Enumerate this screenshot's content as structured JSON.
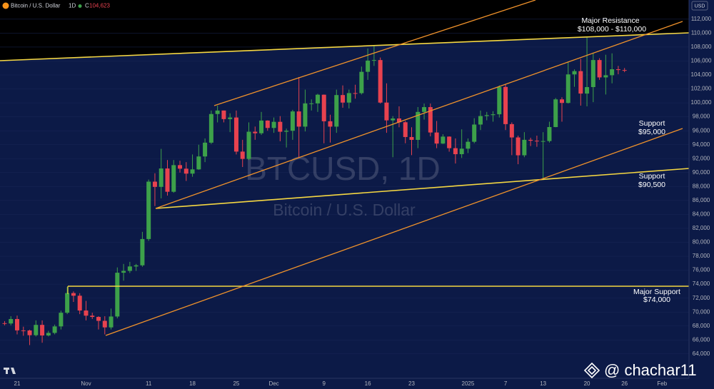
{
  "chart_data": {
    "type": "candlestick",
    "header": {
      "symbol": "Bitcoin / U.S. Dollar",
      "interval": "1D",
      "close_prefix": "C",
      "close": {
        "value": 104623,
        "label": "104,623"
      }
    },
    "watermark": {
      "symbol": "BTCUSD, 1D",
      "description": "Bitcoin / U.S. Dollar"
    },
    "currency": "USD",
    "credit": "@ chachar11",
    "annotations": [
      {
        "title": "Major Resistance",
        "level": "$108,000 - $110,000"
      },
      {
        "title": "Support",
        "level": "$95,000"
      },
      {
        "title": "Support",
        "level": "$90,500"
      },
      {
        "title": "Major Support",
        "level": "$74,000"
      }
    ],
    "up_color": "#3da14a",
    "down_color": "#e8424f",
    "ylim": [
      60500,
      114750
    ],
    "yticks": [
      {
        "value": 64000,
        "label": "64,000"
      },
      {
        "value": 66000,
        "label": "66,000"
      },
      {
        "value": 68000,
        "label": "68,000"
      },
      {
        "value": 70000,
        "label": "70,000"
      },
      {
        "value": 72000,
        "label": "72,000"
      },
      {
        "value": 74000,
        "label": "74,000"
      },
      {
        "value": 76000,
        "label": "76,000"
      },
      {
        "value": 78000,
        "label": "78,000"
      },
      {
        "value": 80000,
        "label": "80,000"
      },
      {
        "value": 82000,
        "label": "82,000"
      },
      {
        "value": 84000,
        "label": "84,000"
      },
      {
        "value": 86000,
        "label": "86,000"
      },
      {
        "value": 88000,
        "label": "88,000"
      },
      {
        "value": 90000,
        "label": "90,000"
      },
      {
        "value": 92000,
        "label": "92,000"
      },
      {
        "value": 94000,
        "label": "94,000"
      },
      {
        "value": 96000,
        "label": "96,000"
      },
      {
        "value": 98000,
        "label": "98,000"
      },
      {
        "value": 100000,
        "label": "100,000"
      },
      {
        "value": 102000,
        "label": "102,000"
      },
      {
        "value": 104000,
        "label": "104,000"
      },
      {
        "value": 106000,
        "label": "106,000"
      },
      {
        "value": 108000,
        "label": "108,000"
      },
      {
        "value": 110000,
        "label": "110,000"
      },
      {
        "value": 112000,
        "label": "112,000"
      }
    ],
    "xticks": [
      {
        "value": 2,
        "label": "21"
      },
      {
        "value": 13,
        "label": "Nov"
      },
      {
        "value": 23,
        "label": "11"
      },
      {
        "value": 30,
        "label": "18"
      },
      {
        "value": 37,
        "label": "25"
      },
      {
        "value": 43,
        "label": "Dec"
      },
      {
        "value": 51,
        "label": "9"
      },
      {
        "value": 58,
        "label": "16"
      },
      {
        "value": 65,
        "label": "23"
      },
      {
        "value": 74,
        "label": "2025"
      },
      {
        "value": 80,
        "label": "7"
      },
      {
        "value": 86,
        "label": "13"
      },
      {
        "value": 93,
        "label": "20"
      },
      {
        "value": 99,
        "label": "26"
      },
      {
        "value": 105,
        "label": "Feb"
      }
    ],
    "open": [
      68400,
      68360,
      69000,
      67370,
      67360,
      66680,
      68160,
      66640,
      67010,
      67940,
      69900,
      72720,
      72340,
      70220,
      69480,
      69300,
      68740,
      67800,
      69360,
      75640,
      75900,
      76540,
      76700,
      80470,
      88700,
      87950,
      90590,
      87250,
      91070,
      90560,
      89850,
      90460,
      92310,
      94290,
      98400,
      98900,
      97670,
      97900,
      93010,
      91960,
      95860,
      95640,
      97460,
      96400,
      97280,
      95860,
      96000,
      98770,
      96590,
      99920,
      99920,
      101170,
      97360,
      96590,
      101120,
      100040,
      101400,
      101390,
      104450,
      106060,
      106140,
      100040,
      97490,
      97760,
      97220,
      95100,
      94690,
      98700,
      99390,
      95750,
      94160,
      95160,
      93500,
      92640,
      93430,
      94420,
      96890,
      98110,
      98240,
      98360,
      102280,
      96950,
      95040,
      92480,
      94700,
      94570,
      94490,
      94520,
      96530,
      100500,
      99990,
      104080,
      104550,
      101330,
      102260,
      106140,
      103650,
      103960,
      104820,
      104710
    ],
    "high": [
      68700,
      69400,
      69500,
      67900,
      67470,
      68800,
      68800,
      67300,
      68200,
      70200,
      73600,
      72960,
      72700,
      71600,
      69900,
      69400,
      69400,
      70500,
      76400,
      76900,
      77200,
      76900,
      81500,
      89000,
      89900,
      93400,
      91800,
      91800,
      91700,
      91500,
      92600,
      94000,
      94900,
      98900,
      99600,
      98900,
      98500,
      98900,
      94700,
      97200,
      96600,
      98700,
      97500,
      97900,
      98100,
      96300,
      99000,
      103700,
      101900,
      100500,
      101300,
      101200,
      98300,
      101900,
      102500,
      101900,
      102600,
      105200,
      107800,
      108300,
      106500,
      102800,
      98100,
      99500,
      97400,
      96500,
      99400,
      99900,
      99900,
      97400,
      95500,
      95200,
      94900,
      96200,
      94900,
      97800,
      98900,
      98700,
      98800,
      102500,
      102700,
      97200,
      95300,
      95800,
      95000,
      95300,
      95800,
      97300,
      100700,
      100800,
      105900,
      104800,
      106300,
      109500,
      107200,
      106400,
      106900,
      107100,
      105300,
      105000
    ],
    "low": [
      68100,
      68100,
      66800,
      66600,
      65260,
      66500,
      65600,
      66500,
      66800,
      67500,
      69700,
      71450,
      69700,
      68800,
      69000,
      67500,
      66800,
      67500,
      69100,
      74500,
      75600,
      75900,
      76500,
      80200,
      85200,
      86300,
      86700,
      87100,
      90000,
      88800,
      89400,
      90400,
      91500,
      94100,
      97200,
      97200,
      95800,
      92600,
      90800,
      91800,
      94700,
      95400,
      96000,
      95700,
      94500,
      93600,
      94700,
      92100,
      95900,
      98900,
      98700,
      94200,
      94300,
      95700,
      99300,
      99200,
      100600,
      101200,
      103300,
      105300,
      99900,
      95700,
      92200,
      96500,
      94200,
      92500,
      93500,
      97600,
      95200,
      93500,
      94100,
      93000,
      91300,
      92100,
      92800,
      94200,
      96100,
      97500,
      97300,
      97900,
      96100,
      92500,
      91200,
      92200,
      93800,
      93700,
      89200,
      94300,
      96500,
      97300,
      99900,
      102300,
      99600,
      99500,
      100100,
      103300,
      101200,
      102800,
      104100,
      104400
    ],
    "close": [
      68360,
      69000,
      67370,
      67360,
      66680,
      68160,
      66640,
      67010,
      67940,
      69900,
      72720,
      72340,
      70220,
      69480,
      69300,
      68740,
      67800,
      69360,
      75640,
      75900,
      76540,
      76700,
      80470,
      88700,
      87950,
      90590,
      87250,
      91070,
      90560,
      89850,
      90460,
      92310,
      94290,
      98400,
      98900,
      97670,
      97900,
      93010,
      91960,
      95860,
      95640,
      97460,
      96400,
      97280,
      95860,
      96000,
      98770,
      96590,
      99920,
      99920,
      101170,
      97360,
      96590,
      101120,
      100040,
      101400,
      101390,
      104450,
      106060,
      106140,
      100040,
      97490,
      97760,
      97220,
      95100,
      94690,
      98700,
      99390,
      95750,
      94160,
      95160,
      93500,
      92640,
      93430,
      94420,
      96890,
      98110,
      98240,
      98360,
      102280,
      96950,
      95040,
      92480,
      94700,
      94570,
      94490,
      94520,
      96530,
      100500,
      99990,
      104080,
      104550,
      101330,
      102260,
      106140,
      103650,
      103960,
      104820,
      104710,
      104623
    ]
  }
}
